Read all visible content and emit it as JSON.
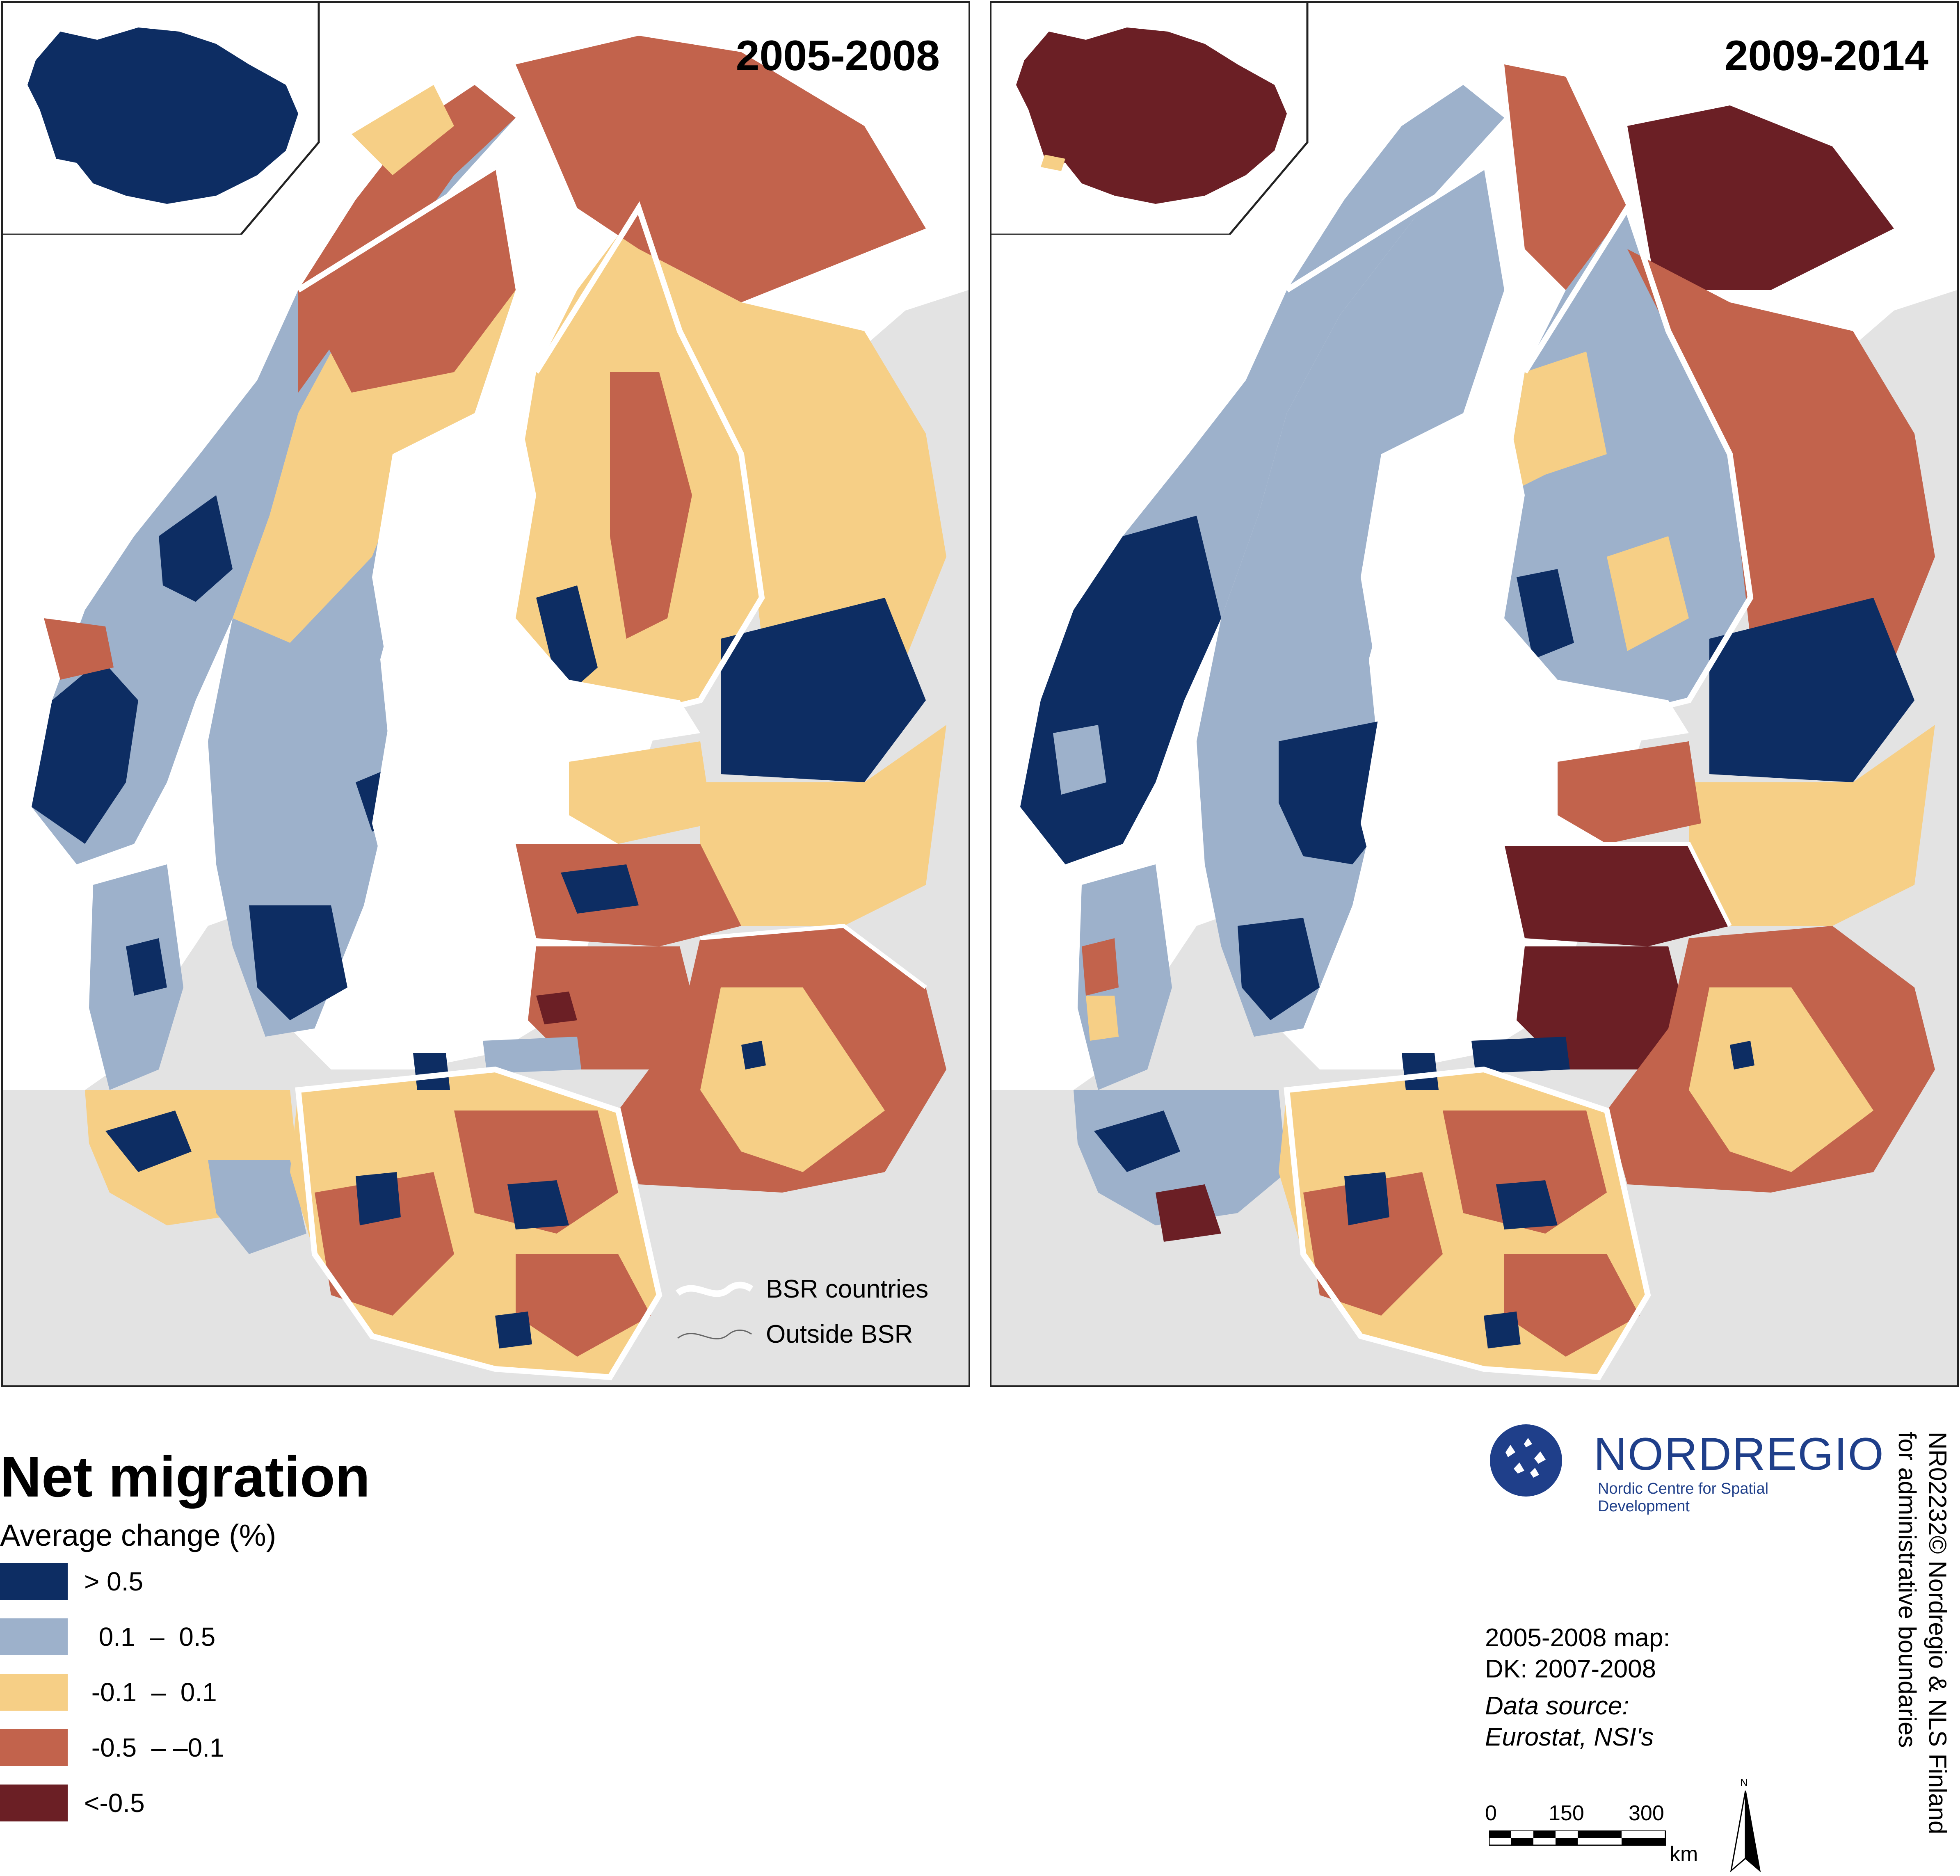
{
  "maps": [
    {
      "period": "2005-2008"
    },
    {
      "period": "2009-2014"
    }
  ],
  "map_legend": {
    "bsr_countries": "BSR countries",
    "outside_bsr": "Outside BSR"
  },
  "legend": {
    "title": "Net migration",
    "subtitle": "Average change (%)",
    "classes": [
      {
        "label": "> 0.5",
        "color": "#0d2d63"
      },
      {
        "label": "  0.1  –  0.5",
        "color": "#9db1cb"
      },
      {
        "label": " -0.1  –  0.1",
        "color": "#f6cf86"
      },
      {
        "label": " -0.5  – –0.1",
        "color": "#c2634c"
      },
      {
        "label": "<-0.5",
        "color": "#6b1f25"
      }
    ]
  },
  "colors": {
    "sea": "#ffffff",
    "land_outside": "#e3e3e3",
    "bsr_border": "#ffffff",
    "brand_blue": "#1f3f8a"
  },
  "logo": {
    "name": "NORDREGIO",
    "tagline": "Nordic Centre for Spatial Development"
  },
  "copyright": {
    "line1": "NR02232© Nordregio & NLS Finland",
    "line2": "for administrative boundaries"
  },
  "notes": {
    "line1": "2005-2008 map:",
    "line2": "DK: 2007-2008",
    "source1": "Data source:",
    "source2": "Eurostat, NSI's"
  },
  "scale": {
    "ticks": [
      "0",
      "150",
      "300"
    ],
    "unit": "km",
    "north": "N"
  }
}
